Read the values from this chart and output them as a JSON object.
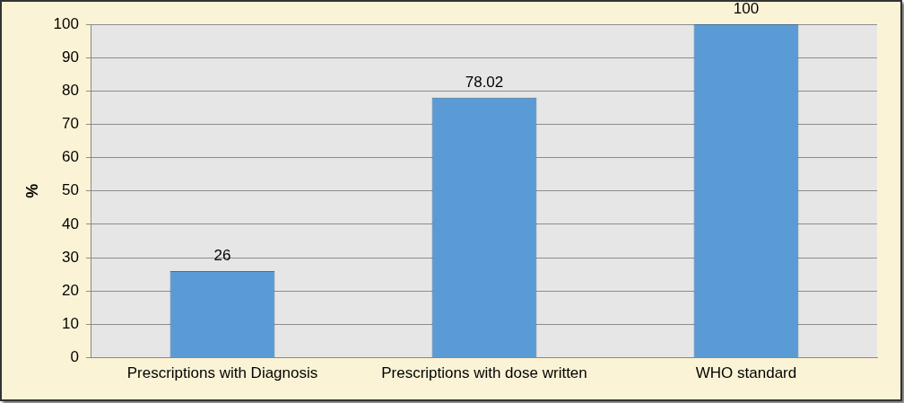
{
  "chart_data": {
    "type": "bar",
    "ylabel": "%",
    "categories": [
      "Prescriptions with Diagnosis",
      "Prescriptions with dose written",
      "WHO standard"
    ],
    "values": [
      26,
      78.02,
      100
    ],
    "color": "#5b9bd5",
    "ylim": [
      0,
      100
    ],
    "yticks": [
      0,
      10,
      20,
      30,
      40,
      50,
      60,
      70,
      80,
      90,
      100
    ],
    "grid": "y",
    "data_labels": true,
    "legend": false
  }
}
